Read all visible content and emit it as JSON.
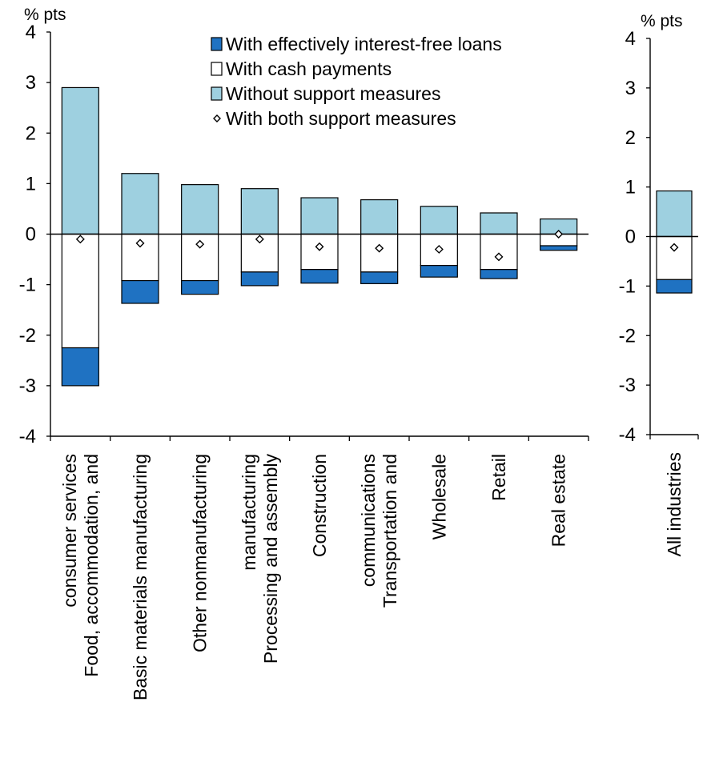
{
  "chart_data": [
    {
      "type": "bar",
      "stacked": true,
      "ylabel": "% pts",
      "ylim": [
        -4,
        4
      ],
      "yticks": [
        "4",
        "3",
        "2",
        "1",
        "0",
        "-1",
        "-2",
        "-3",
        "-4"
      ],
      "categories": [
        [
          "Food, accommodation, and",
          "consumer services"
        ],
        [
          "Basic materials manufacturing"
        ],
        [
          "Other nonmanufacturing"
        ],
        [
          "Processing and assembly",
          "manufacturing"
        ],
        [
          "Construction"
        ],
        [
          "Transportation and",
          "communications"
        ],
        [
          "Wholesale"
        ],
        [
          "Retail"
        ],
        [
          "Real estate"
        ]
      ],
      "series": [
        {
          "name": "With effectively interest-free loans",
          "key": "loans",
          "color": "#1f72c2",
          "values": [
            -0.75,
            -0.45,
            -0.27,
            -0.27,
            -0.27,
            -0.23,
            -0.23,
            -0.18,
            -0.09
          ]
        },
        {
          "name": "With cash payments",
          "key": "cash",
          "color": "#ffffff",
          "values": [
            -2.25,
            -0.92,
            -0.92,
            -0.75,
            -0.7,
            -0.75,
            -0.62,
            -0.7,
            -0.23
          ]
        },
        {
          "name": "Without support measures",
          "key": "without",
          "color": "#9ed0e0",
          "values": [
            2.9,
            1.2,
            0.98,
            0.9,
            0.72,
            0.68,
            0.55,
            0.42,
            0.3
          ]
        },
        {
          "name": "With both support measures",
          "key": "both",
          "marker": "diamond",
          "values": [
            -0.1,
            -0.18,
            -0.2,
            -0.1,
            -0.25,
            -0.28,
            -0.3,
            -0.45,
            0.0
          ]
        }
      ],
      "legend_position": "top-right"
    },
    {
      "type": "bar",
      "stacked": true,
      "ylabel": "% pts",
      "ylim": [
        -4,
        4
      ],
      "yticks": [
        "4",
        "3",
        "2",
        "1",
        "0",
        "-1",
        "-2",
        "-3",
        "-4"
      ],
      "categories": [
        [
          "All industries"
        ]
      ],
      "series": [
        {
          "name": "With effectively interest-free loans",
          "key": "loans",
          "color": "#1f72c2",
          "values": [
            -0.27
          ]
        },
        {
          "name": "With cash payments",
          "key": "cash",
          "color": "#ffffff",
          "values": [
            -0.87
          ]
        },
        {
          "name": "Without support measures",
          "key": "without",
          "color": "#9ed0e0",
          "values": [
            0.92
          ]
        },
        {
          "name": "With both support measures",
          "key": "both",
          "marker": "diamond",
          "values": [
            -0.22
          ]
        }
      ]
    }
  ]
}
